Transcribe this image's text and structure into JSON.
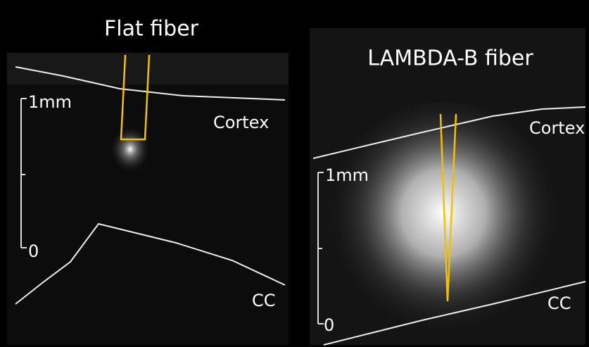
{
  "panels": [
    {
      "title": "Flat fiber",
      "scale_top": "1mm",
      "scale_bottom": "0",
      "upper_label": "Cortex",
      "lower_label": "CC"
    },
    {
      "title": "LAMBDA-B fiber",
      "scale_top": "1mm",
      "scale_bottom": "0",
      "upper_label": "Cortex",
      "lower_label": "CC"
    }
  ]
}
